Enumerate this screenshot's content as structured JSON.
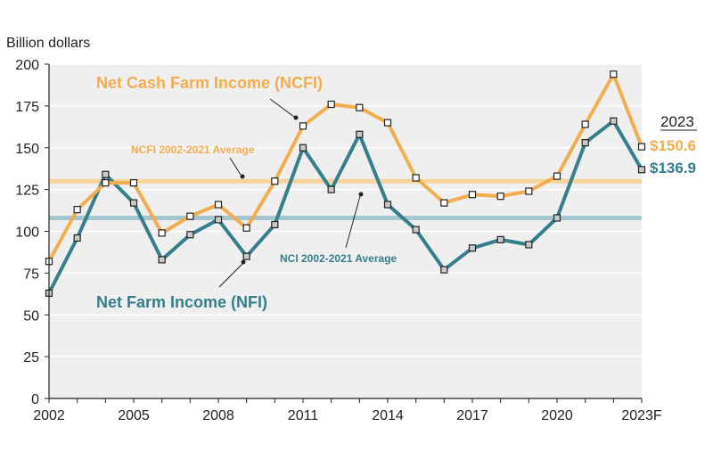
{
  "chart_data": {
    "type": "line",
    "ylabel": "Billion dollars",
    "ylim": [
      0,
      200
    ],
    "yticks": [
      0,
      25,
      50,
      75,
      100,
      125,
      150,
      175,
      200
    ],
    "x": [
      2002,
      2003,
      2004,
      2005,
      2006,
      2007,
      2008,
      2009,
      2010,
      2011,
      2012,
      2013,
      2014,
      2015,
      2016,
      2017,
      2018,
      2019,
      2020,
      2021,
      2022,
      2023
    ],
    "xticks": [
      {
        "x": 2002,
        "label": "2002"
      },
      {
        "x": 2005,
        "label": "2005"
      },
      {
        "x": 2008,
        "label": "2008"
      },
      {
        "x": 2011,
        "label": "2011"
      },
      {
        "x": 2014,
        "label": "2014"
      },
      {
        "x": 2017,
        "label": "2017"
      },
      {
        "x": 2020,
        "label": "2020"
      },
      {
        "x": 2023,
        "label": "2023F"
      }
    ],
    "series": [
      {
        "name": "Net Cash Farm Income (NCFI)",
        "color": "#f2ad4e",
        "values": [
          82,
          113,
          129,
          129,
          99,
          109,
          116,
          102,
          130,
          163,
          176,
          174,
          165,
          132,
          117,
          122,
          121,
          124,
          133,
          164,
          194,
          150.6
        ]
      },
      {
        "name": "Net Farm Income (NFI)",
        "color": "#357e8c",
        "values": [
          63,
          96,
          134,
          117,
          83,
          98,
          107,
          85,
          104,
          150,
          125,
          158,
          116,
          101,
          77,
          90,
          95,
          92,
          108,
          153,
          166,
          136.9
        ]
      }
    ],
    "averages": [
      {
        "label": "NCFI 2002-2021 Average",
        "value": 130,
        "color": "#f7d49c"
      },
      {
        "label": "NCI 2002-2021 Average",
        "value": 108,
        "color": "#a3c7cf"
      }
    ],
    "end_labels": {
      "year": "2023",
      "ncfi": "$150.6",
      "nfi": "$136.9"
    },
    "grid": "horizontal"
  }
}
